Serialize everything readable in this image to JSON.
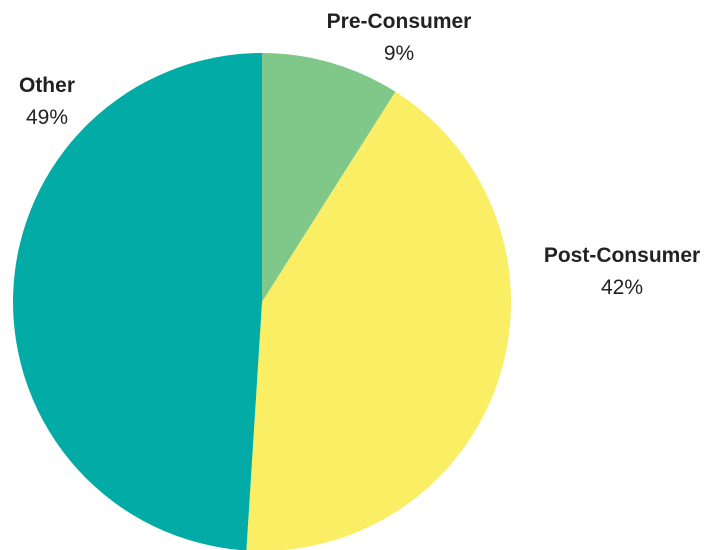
{
  "chart_data": {
    "type": "pie",
    "title": "",
    "slices": [
      {
        "label": "Pre-Consumer",
        "value": 9,
        "value_label": "9%",
        "color": "#80c78a"
      },
      {
        "label": "Post-Consumer",
        "value": 42,
        "value_label": "42%",
        "color": "#f9ee64"
      },
      {
        "label": "Other",
        "value": 49,
        "value_label": "49%",
        "color": "#03aba6"
      }
    ],
    "legend": "none",
    "start_angle": "12 o'clock",
    "direction": "clockwise"
  }
}
